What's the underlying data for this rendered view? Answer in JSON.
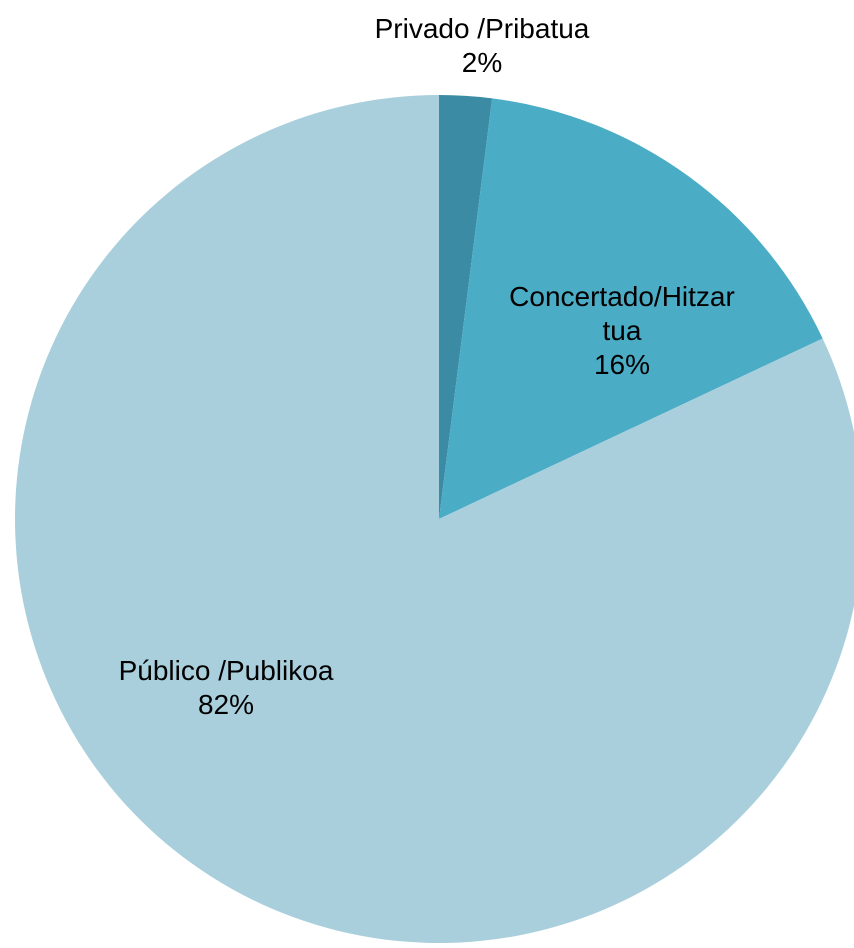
{
  "chart_data": {
    "type": "pie",
    "title": "",
    "start_angle_deg": 0,
    "direction": "clockwise",
    "slices": [
      {
        "name": "Privado /Pribatua",
        "value": 2,
        "value_label": "2%",
        "label_lines": [
          "Privado /Pribatua"
        ],
        "color": "#3A8BA3"
      },
      {
        "name": "Concertado/Hitzar tua",
        "value": 16,
        "value_label": "16%",
        "label_lines": [
          "Concertado/Hitzar",
          "tua"
        ],
        "color": "#4BACC6"
      },
      {
        "name": "Público /Publikoa",
        "value": 82,
        "value_label": "82%",
        "label_lines": [
          "Público /Publikoa"
        ],
        "color": "#A9CFDD"
      }
    ],
    "legend": "none"
  }
}
